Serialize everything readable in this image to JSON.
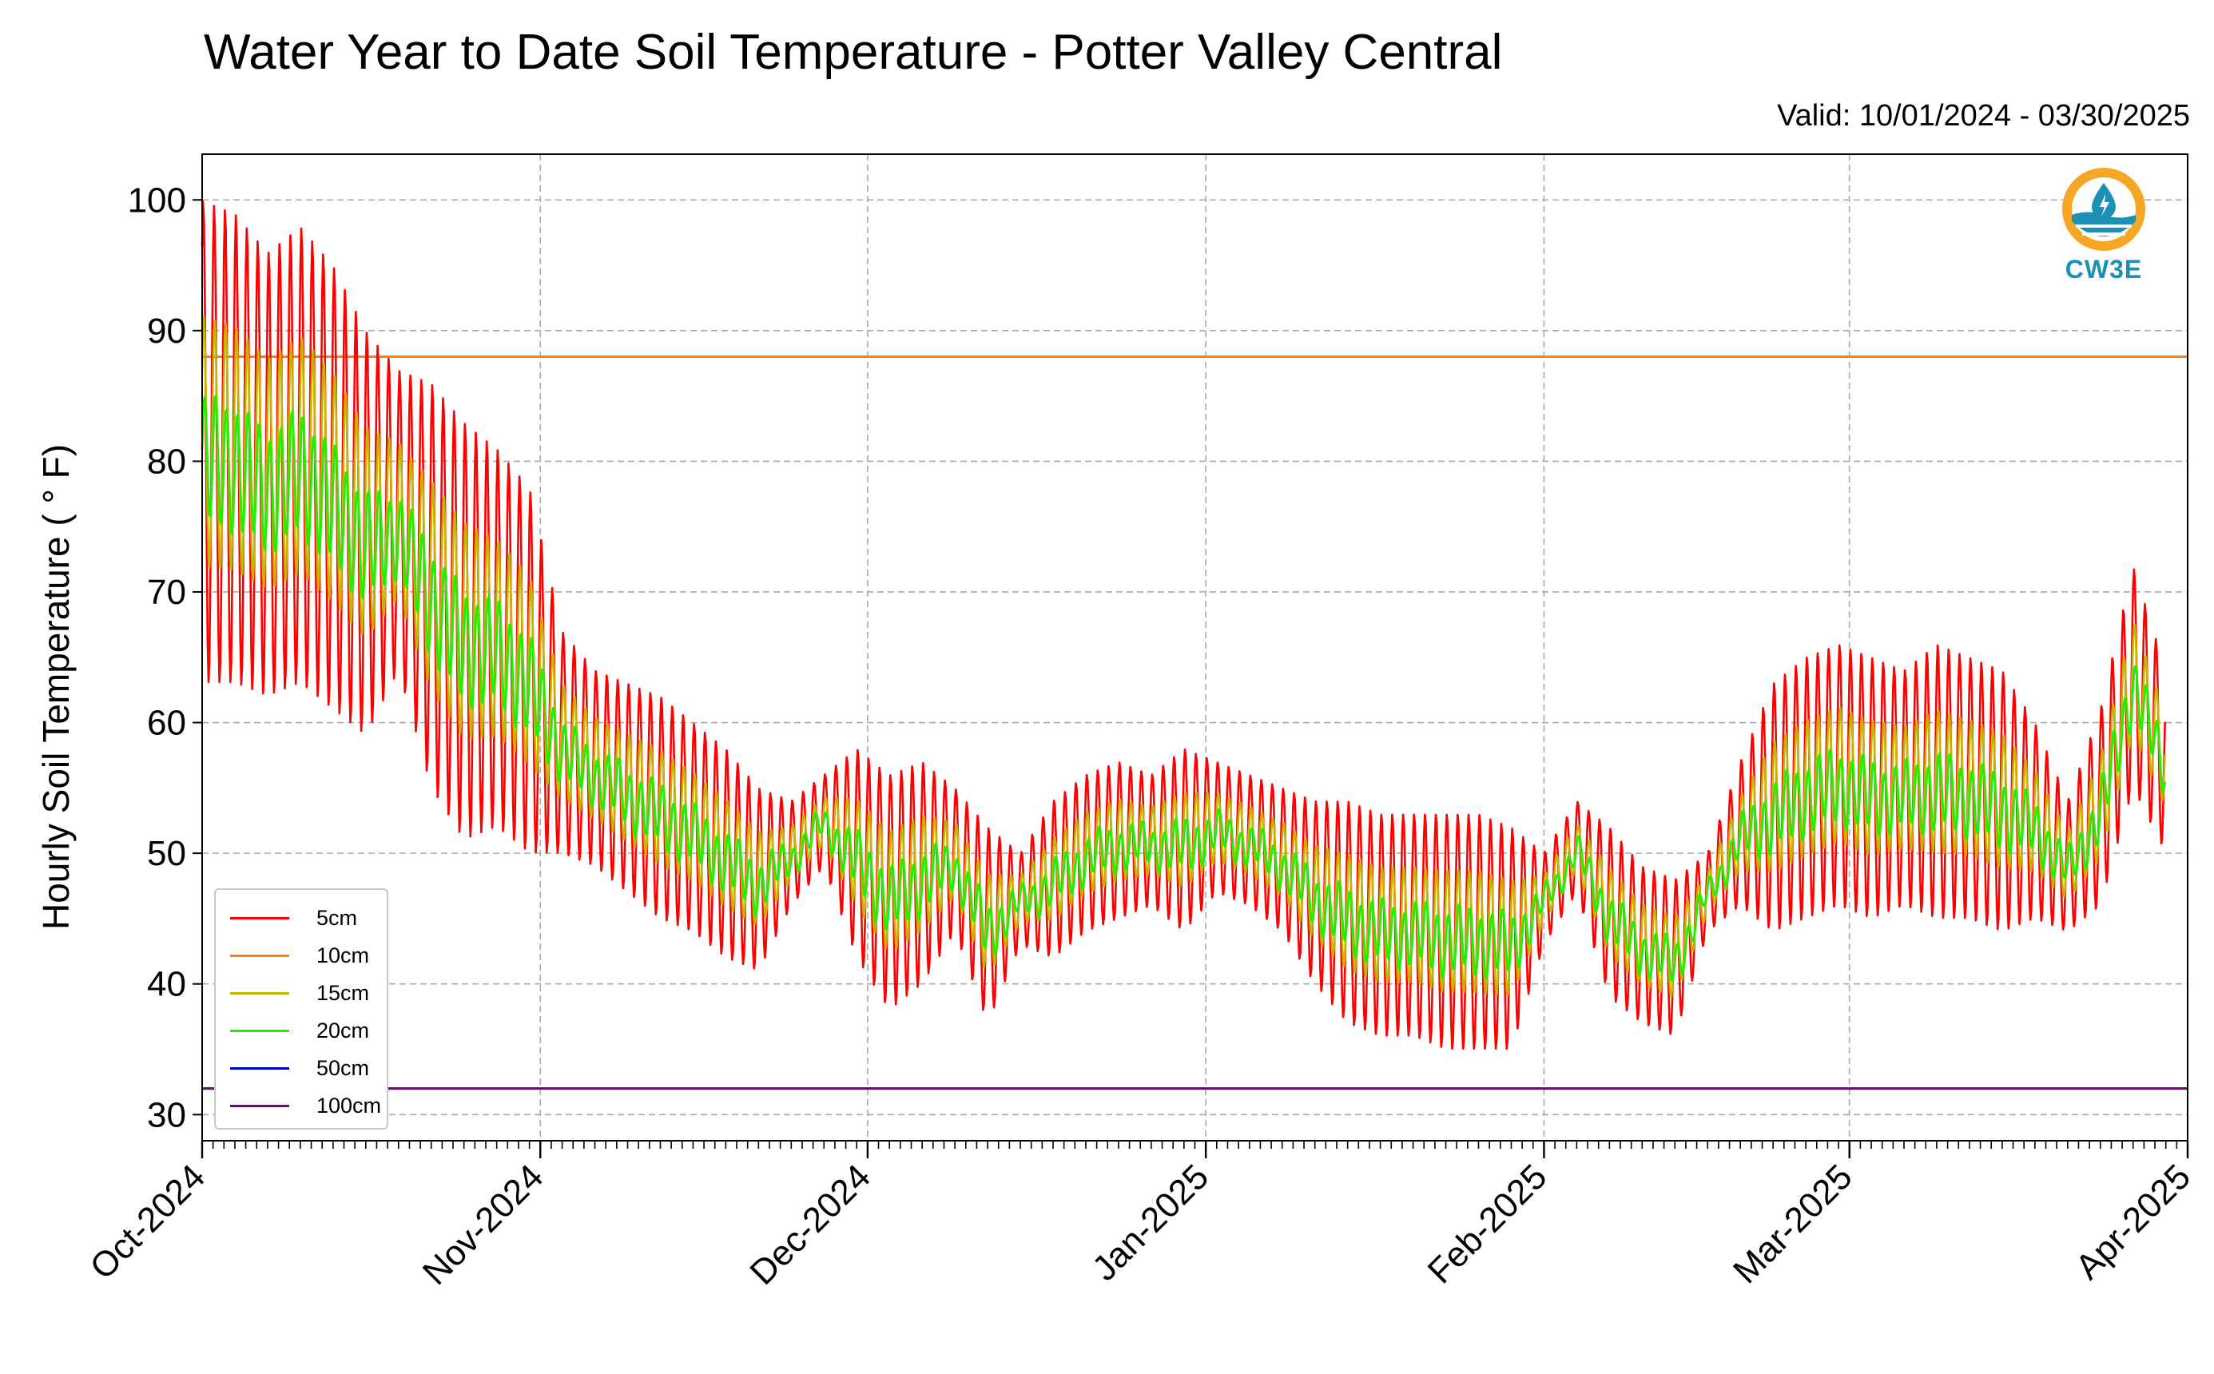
{
  "header": {
    "title": "Water Year to Date Soil Temperature - Potter Valley Central",
    "valid": "Valid: 10/01/2024 - 03/30/2025"
  },
  "logo": {
    "text": "CW3E",
    "icon": "cw3e-water-drop-logo",
    "ring_color": "#f5a623",
    "water_color": "#1b8fb4"
  },
  "chart_data": {
    "type": "line",
    "ylabel": "Hourly Soil Temperature ( ° F)",
    "x_range": [
      "2024-10-01",
      "2025-04-01"
    ],
    "ylim": [
      28,
      103.5
    ],
    "yticks": [
      30,
      40,
      50,
      60,
      70,
      80,
      90,
      100
    ],
    "xticks": [
      {
        "date": "2024-10-01",
        "label": "Oct-2024"
      },
      {
        "date": "2024-11-01",
        "label": "Nov-2024"
      },
      {
        "date": "2024-12-01",
        "label": "Dec-2024"
      },
      {
        "date": "2025-01-01",
        "label": "Jan-2025"
      },
      {
        "date": "2025-02-01",
        "label": "Feb-2025"
      },
      {
        "date": "2025-03-01",
        "label": "Mar-2025"
      },
      {
        "date": "2025-04-01",
        "label": "Apr-2025"
      }
    ],
    "grid": true,
    "legend_position": "lower-left",
    "series": [
      {
        "name": "5cm",
        "color": "#ff0000",
        "daily_min_max_approx": [
          [
            "2024-10-01",
            63,
            100
          ],
          [
            "2024-10-04",
            63,
            99
          ],
          [
            "2024-10-07",
            62,
            96
          ],
          [
            "2024-10-10",
            63,
            98
          ],
          [
            "2024-10-13",
            61,
            95
          ],
          [
            "2024-10-16",
            59,
            90
          ],
          [
            "2024-10-19",
            64,
            87
          ],
          [
            "2024-10-22",
            55,
            86
          ],
          [
            "2024-10-25",
            51,
            83
          ],
          [
            "2024-10-28",
            52,
            81
          ],
          [
            "2024-10-31",
            50,
            78
          ],
          [
            "2024-11-03",
            50,
            67
          ],
          [
            "2024-11-06",
            49,
            64
          ],
          [
            "2024-11-09",
            47,
            63
          ],
          [
            "2024-11-12",
            45,
            62
          ],
          [
            "2024-11-15",
            44,
            60
          ],
          [
            "2024-11-18",
            42,
            58
          ],
          [
            "2024-11-21",
            41,
            55
          ],
          [
            "2024-11-24",
            46,
            54
          ],
          [
            "2024-11-27",
            49,
            56
          ],
          [
            "2024-11-30",
            42,
            58
          ],
          [
            "2024-12-03",
            38,
            56
          ],
          [
            "2024-12-06",
            40,
            57
          ],
          [
            "2024-12-09",
            44,
            55
          ],
          [
            "2024-12-12",
            37,
            52
          ],
          [
            "2024-12-15",
            43,
            50
          ],
          [
            "2024-12-18",
            42,
            54
          ],
          [
            "2024-12-21",
            44,
            56
          ],
          [
            "2024-12-24",
            45,
            57
          ],
          [
            "2024-12-27",
            46,
            56
          ],
          [
            "2024-12-30",
            44,
            58
          ],
          [
            "2025-01-02",
            47,
            57
          ],
          [
            "2025-01-05",
            46,
            56
          ],
          [
            "2025-01-08",
            44,
            55
          ],
          [
            "2025-01-11",
            40,
            54
          ],
          [
            "2025-01-14",
            37,
            54
          ],
          [
            "2025-01-17",
            36,
            53
          ],
          [
            "2025-01-20",
            36,
            53
          ],
          [
            "2025-01-23",
            35,
            53
          ],
          [
            "2025-01-26",
            35,
            53
          ],
          [
            "2025-01-29",
            35,
            52
          ],
          [
            "2025-02-01",
            43,
            50
          ],
          [
            "2025-02-04",
            47,
            54
          ],
          [
            "2025-02-07",
            39,
            52
          ],
          [
            "2025-02-10",
            37,
            49
          ],
          [
            "2025-02-13",
            36,
            48
          ],
          [
            "2025-02-16",
            44,
            50
          ],
          [
            "2025-02-19",
            46,
            57
          ],
          [
            "2025-02-22",
            44,
            63
          ],
          [
            "2025-02-25",
            45,
            65
          ],
          [
            "2025-02-28",
            46,
            66
          ],
          [
            "2025-03-03",
            45,
            65
          ],
          [
            "2025-03-06",
            46,
            64
          ],
          [
            "2025-03-09",
            45,
            66
          ],
          [
            "2025-03-12",
            45,
            65
          ],
          [
            "2025-03-15",
            44,
            64
          ],
          [
            "2025-03-18",
            45,
            60
          ],
          [
            "2025-03-21",
            44,
            54
          ],
          [
            "2025-03-24",
            46,
            61
          ],
          [
            "2025-03-27",
            55,
            72
          ],
          [
            "2025-03-30",
            50,
            64
          ]
        ]
      },
      {
        "name": "10cm",
        "color": "#ff7f0e",
        "constant_value": 88
      },
      {
        "name": "15cm",
        "color": "#c8b400",
        "note": "diurnal cycle between 5cm and 20cm traces"
      },
      {
        "name": "20cm",
        "color": "#22ee00",
        "note": "smoothed trace, 80 early Oct declining to about 44 in Jan, rising to about 63 late Mar"
      },
      {
        "name": "50cm",
        "color": "#0000cc",
        "constant_value": 32
      },
      {
        "name": "100cm",
        "color": "#800080",
        "constant_value": 32
      }
    ]
  }
}
